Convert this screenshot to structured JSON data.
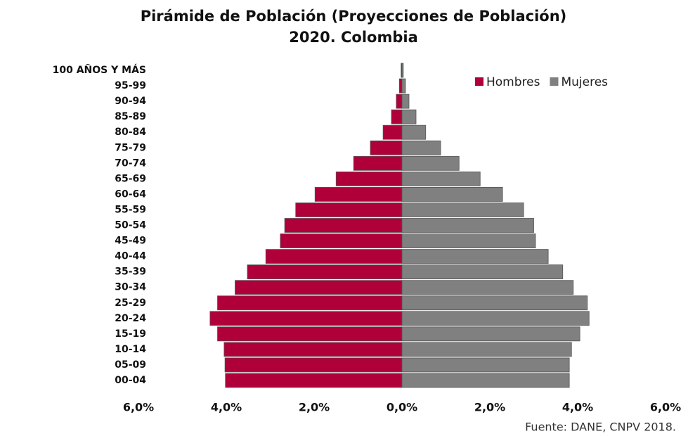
{
  "chart_data": {
    "type": "pyramid",
    "title": "Pirámide de Población (Proyecciones de Población) 2020. Colombia",
    "source": "Fuente: DANE, CNPV 2018.",
    "categories": [
      "100 AÑOS Y MÁS",
      "95-99",
      "90-94",
      "85-89",
      "80-84",
      "75-79",
      "70-74",
      "65-69",
      "60-64",
      "55-59",
      "50-54",
      "45-49",
      "40-44",
      "35-39",
      "30-34",
      "25-29",
      "20-24",
      "15-19",
      "10-14",
      "05-09",
      "00-04"
    ],
    "series": [
      {
        "name": "Hombres",
        "color": "#b0003a",
        "side": "left",
        "values": [
          0.02,
          0.06,
          0.13,
          0.24,
          0.43,
          0.72,
          1.1,
          1.5,
          1.98,
          2.42,
          2.67,
          2.77,
          3.1,
          3.52,
          3.8,
          4.2,
          4.37,
          4.2,
          4.05,
          4.03,
          4.02
        ]
      },
      {
        "name": "Mujeres",
        "color": "#808080",
        "side": "right",
        "values": [
          0.03,
          0.08,
          0.16,
          0.32,
          0.54,
          0.88,
          1.3,
          1.78,
          2.29,
          2.77,
          3.0,
          3.04,
          3.33,
          3.66,
          3.9,
          4.22,
          4.26,
          4.05,
          3.86,
          3.81,
          3.81
        ]
      }
    ],
    "xlim": [
      -6,
      6
    ],
    "xticks": [
      {
        "value": -6,
        "label": "6,0%"
      },
      {
        "value": -4,
        "label": "4,0%"
      },
      {
        "value": -2,
        "label": "2,0%"
      },
      {
        "value": 0,
        "label": "0,0%"
      },
      {
        "value": 2,
        "label": "2,0%"
      },
      {
        "value": 4,
        "label": "4,0%"
      },
      {
        "value": 6,
        "label": "6,0%"
      }
    ],
    "legend": "top-right"
  }
}
